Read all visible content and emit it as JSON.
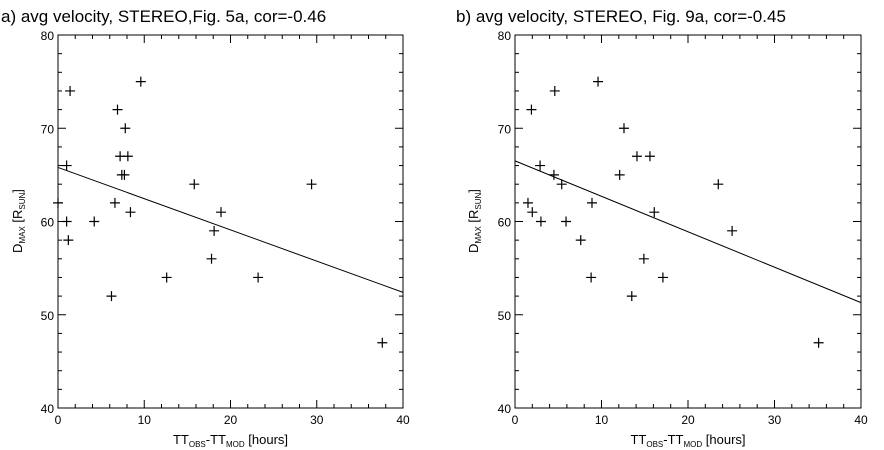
{
  "chart_data": [
    {
      "type": "scatter",
      "title": "a) avg velocity, STEREO,Fig. 5a, cor=-0.46",
      "xlabel": {
        "main": "TT",
        "sub1": "OBS",
        "mid": "-TT",
        "sub2": "MOD",
        "tail": " [hours]"
      },
      "ylabel": {
        "main": "D",
        "sub1": "MAX",
        "mid": " [R",
        "sub2": "SUN",
        "tail": "]"
      },
      "xlim": [
        0,
        40
      ],
      "ylim": [
        40,
        80
      ],
      "xticks": [
        "0",
        "10",
        "20",
        "30",
        "40"
      ],
      "yticks": [
        "40",
        "50",
        "60",
        "70",
        "80"
      ],
      "points": [
        [
          0,
          62
        ],
        [
          1,
          66
        ],
        [
          1,
          60
        ],
        [
          1.2,
          58
        ],
        [
          1.4,
          74
        ],
        [
          4.2,
          60
        ],
        [
          6.2,
          52
        ],
        [
          6.6,
          62
        ],
        [
          6.9,
          72
        ],
        [
          7.2,
          67
        ],
        [
          7.4,
          65
        ],
        [
          7.7,
          65
        ],
        [
          7.8,
          70
        ],
        [
          8.1,
          67
        ],
        [
          8.4,
          61
        ],
        [
          9.6,
          75
        ],
        [
          12.6,
          54
        ],
        [
          15.8,
          64
        ],
        [
          17.8,
          56
        ],
        [
          18.1,
          59
        ],
        [
          18.9,
          61
        ],
        [
          23.2,
          54
        ],
        [
          29.4,
          64
        ],
        [
          37.6,
          47
        ]
      ],
      "fit_line": [
        [
          0,
          65.8
        ],
        [
          40,
          52.4
        ]
      ]
    },
    {
      "type": "scatter",
      "title": "b) avg velocity, STEREO, Fig. 9a, cor=-0.45",
      "xlabel": {
        "main": "TT",
        "sub1": "OBS",
        "mid": "-TT",
        "sub2": "MOD",
        "tail": " [hours]"
      },
      "ylabel": {
        "main": "D",
        "sub1": "MAX",
        "mid": " [R",
        "sub2": "SUN",
        "tail": "]"
      },
      "xlim": [
        0,
        40
      ],
      "ylim": [
        40,
        80
      ],
      "xticks": [
        "0",
        "10",
        "20",
        "30",
        "40"
      ],
      "yticks": [
        "40",
        "50",
        "60",
        "70",
        "80"
      ],
      "points": [
        [
          1.5,
          62
        ],
        [
          1.9,
          72
        ],
        [
          2,
          61
        ],
        [
          2.9,
          66
        ],
        [
          3,
          60
        ],
        [
          4.5,
          65
        ],
        [
          4.6,
          74
        ],
        [
          5.4,
          64
        ],
        [
          5.9,
          60
        ],
        [
          7.6,
          58
        ],
        [
          8.8,
          54
        ],
        [
          8.9,
          62
        ],
        [
          9.6,
          75
        ],
        [
          12.1,
          65
        ],
        [
          12.6,
          70
        ],
        [
          13.5,
          52
        ],
        [
          14.1,
          67
        ],
        [
          14.9,
          56
        ],
        [
          15.6,
          67
        ],
        [
          16.1,
          61
        ],
        [
          17.1,
          54
        ],
        [
          23.5,
          64
        ],
        [
          25.1,
          59
        ],
        [
          35.1,
          47
        ]
      ],
      "fit_line": [
        [
          0,
          66.5
        ],
        [
          40,
          51.3
        ]
      ]
    }
  ]
}
